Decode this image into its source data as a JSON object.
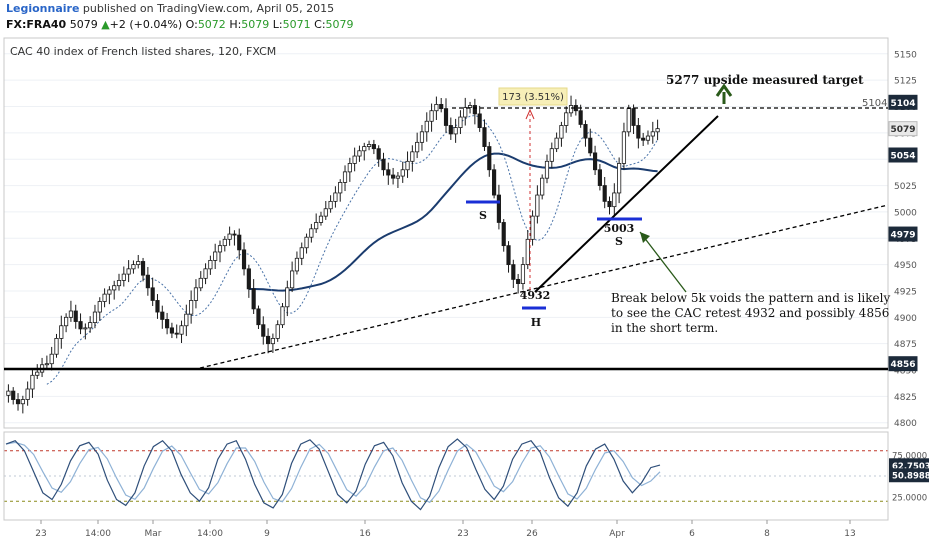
{
  "header": {
    "user": "Legionnaire",
    "published": " published on TradingView.com, April 05, 2015",
    "symbol": "FX:FRA40",
    "last": "5079",
    "arrow": "▲",
    "change": "+2 (+0.04%)",
    "o_label": "O:",
    "o_val": "5072",
    "h_label": "H:",
    "h_val": "5079",
    "l_label": "L:",
    "l_val": "5071",
    "c_label": "C:",
    "c_val": "5079"
  },
  "chart_title": "CAC 40 index of French listed shares, 120, FXCM",
  "annotations": {
    "measure": "173 (3.51%)",
    "target": "5277 upside measured target",
    "left_shoulder": "S",
    "head": "H",
    "right_shoulder": "S",
    "low_4932": "4932",
    "low_5003": "5003",
    "level_5104": "5104",
    "note_lines": [
      "Break below 5k voids the pattern and is likely",
      "to see the CAC retest 4932 and possibly 4856",
      "in the short term."
    ]
  },
  "colors": {
    "price_bar": "#1a1a1a",
    "ma_slow": "#1b3c6e",
    "ma_fast": "#4a73a8",
    "shoulder_marker": "#1a2fd6",
    "target_arrow": "#2a5a1a",
    "stoch_k": "#2f4f7a",
    "stoch_d": "#8fb2d6",
    "stoch_upper": "#c0392b",
    "stoch_lower": "#8a8a1a"
  },
  "chart_data": {
    "type": "candlestick",
    "title": "CAC 40 index of French listed shares, 120, FXCM",
    "ylim": [
      4795,
      5165
    ],
    "y_ticks": [
      4800,
      4825,
      4850,
      4875,
      4900,
      4925,
      4950,
      4975,
      5000,
      5025,
      5050,
      5075,
      5100,
      5125,
      5150
    ],
    "x_ticks": [
      "23",
      "14:00",
      "Mar",
      "14:00",
      "9",
      "16",
      "23",
      "26",
      "Apr",
      "6",
      "8",
      "13"
    ],
    "price_tags": [
      {
        "value": "5104",
        "style": "dark"
      },
      {
        "value": "5079",
        "style": "light"
      },
      {
        "value": "5054",
        "style": "dark"
      },
      {
        "value": "4979",
        "style": "dark"
      },
      {
        "value": "4856",
        "style": "dark"
      }
    ],
    "levels": [
      {
        "name": "support",
        "value": 4856
      },
      {
        "name": "neckline",
        "value": 5104
      }
    ],
    "close_series": [
      4830,
      4822,
      4818,
      4822,
      4832,
      4845,
      4848,
      4855,
      4856,
      4865,
      4880,
      4892,
      4900,
      4906,
      4896,
      4889,
      4890,
      4895,
      4905,
      4915,
      4922,
      4926,
      4930,
      4935,
      4941,
      4946,
      4950,
      4953,
      4940,
      4928,
      4916,
      4905,
      4898,
      4890,
      4885,
      4884,
      4892,
      4903,
      4916,
      4928,
      4937,
      4946,
      4954,
      4962,
      4968,
      4974,
      4979,
      4978,
      4964,
      4946,
      4927,
      4908,
      4893,
      4882,
      4875,
      4880,
      4893,
      4910,
      4928,
      4944,
      4956,
      4966,
      4976,
      4984,
      4990,
      4996,
      5003,
      5010,
      5018,
      5028,
      5038,
      5046,
      5053,
      5058,
      5062,
      5064,
      5060,
      5050,
      5040,
      5035,
      5032,
      5034,
      5040,
      5048,
      5057,
      5066,
      5076,
      5086,
      5096,
      5102,
      5098,
      5082,
      5074,
      5080,
      5090,
      5099,
      5101,
      5093,
      5080,
      5062,
      5040,
      5016,
      4990,
      4968,
      4950,
      4936,
      4932,
      4950,
      4974,
      4996,
      5016,
      5032,
      5048,
      5060,
      5070,
      5082,
      5094,
      5101,
      5096,
      5083,
      5070,
      5056,
      5040,
      5025,
      5010,
      5005,
      5018,
      5046,
      5076,
      5098,
      5082,
      5070,
      5068,
      5072,
      5076,
      5079
    ],
    "stochastic": {
      "upper": 80,
      "lower": 20,
      "mid": 50.8988,
      "k_last": 62.7503,
      "d_last": 50.8988,
      "k": [
        88,
        92,
        80,
        55,
        30,
        22,
        40,
        68,
        86,
        90,
        76,
        45,
        22,
        15,
        30,
        62,
        85,
        92,
        80,
        52,
        30,
        20,
        36,
        70,
        88,
        92,
        70,
        40,
        18,
        12,
        28,
        65,
        88,
        93,
        82,
        55,
        28,
        18,
        32,
        64,
        86,
        90,
        74,
        42,
        20,
        10,
        26,
        60,
        85,
        94,
        84,
        58,
        34,
        22,
        38,
        70,
        88,
        92,
        78,
        48,
        24,
        14,
        30,
        62,
        82,
        88,
        70,
        44,
        30,
        42,
        60,
        63
      ],
      "tick_labels": [
        "75.0000",
        "62.7503",
        "50.8988",
        "25.0000"
      ]
    }
  }
}
